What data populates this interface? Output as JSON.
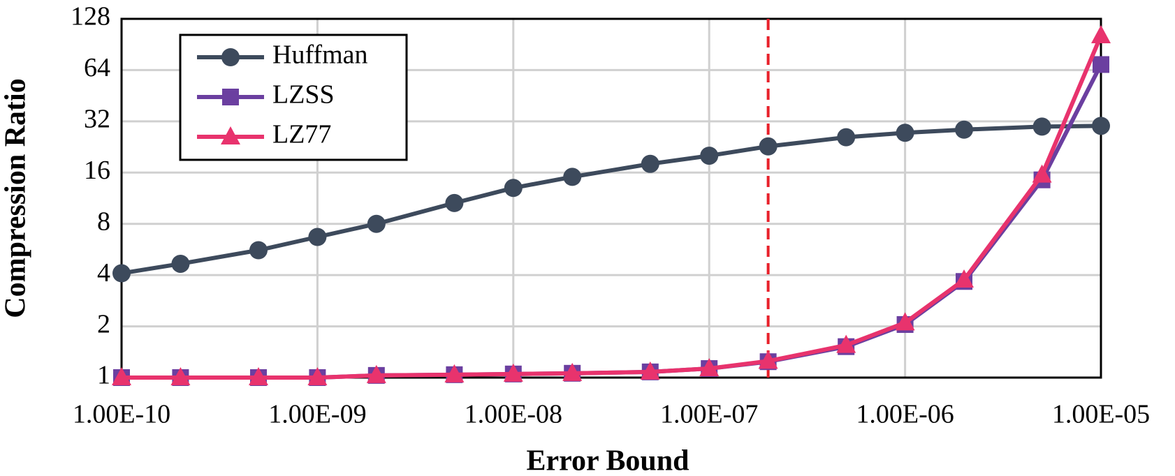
{
  "chart_data": {
    "type": "line",
    "x_label": "Error Bound",
    "y_label": "Compression Ratio",
    "x": [
      1e-10,
      2e-10,
      5e-10,
      1e-09,
      2e-09,
      5e-09,
      1e-08,
      2e-08,
      5e-08,
      1e-07,
      2e-07,
      5e-07,
      1e-06,
      2e-06,
      5e-06,
      1e-05
    ],
    "series": [
      {
        "name": "Huffman",
        "color": "#3d4a5c",
        "marker": "circle",
        "values": [
          4.1,
          4.66,
          5.6,
          6.7,
          8.0,
          10.6,
          13,
          15.1,
          18,
          20.1,
          22.8,
          25.8,
          27.4,
          28.6,
          29.8,
          30.1
        ]
      },
      {
        "name": "LZSS",
        "color": "#6b3fa0",
        "marker": "square",
        "values": [
          1.0,
          1.0,
          1.0,
          1.0,
          1.03,
          1.04,
          1.05,
          1.06,
          1.08,
          1.13,
          1.24,
          1.52,
          2.05,
          3.67,
          14.5,
          69
        ]
      },
      {
        "name": "LZ77",
        "color": "#e8336d",
        "marker": "triangle",
        "values": [
          1.0,
          1.0,
          1.0,
          1.0,
          1.03,
          1.04,
          1.05,
          1.06,
          1.08,
          1.13,
          1.25,
          1.55,
          2.1,
          3.75,
          15.5,
          102
        ]
      }
    ],
    "xscale": "log",
    "yscale": "log",
    "xlim": [
      1e-10,
      1e-05
    ],
    "xticks": [
      {
        "value": 1e-10,
        "label": "1.00E-10"
      },
      {
        "value": 1e-09,
        "label": "1.00E-09"
      },
      {
        "value": 1e-08,
        "label": "1.00E-08"
      },
      {
        "value": 1e-07,
        "label": "1.00E-07"
      },
      {
        "value": 1e-06,
        "label": "1.00E-06"
      },
      {
        "value": 1e-05,
        "label": "1.00E-05"
      }
    ],
    "ylim": [
      1,
      128
    ],
    "yticks": [
      1,
      2,
      4,
      8,
      16,
      32,
      64,
      128
    ],
    "grid": true,
    "legend": "upper-left",
    "reference_line": {
      "x": 2e-07,
      "color": "#e8202a",
      "dashed": true
    }
  }
}
